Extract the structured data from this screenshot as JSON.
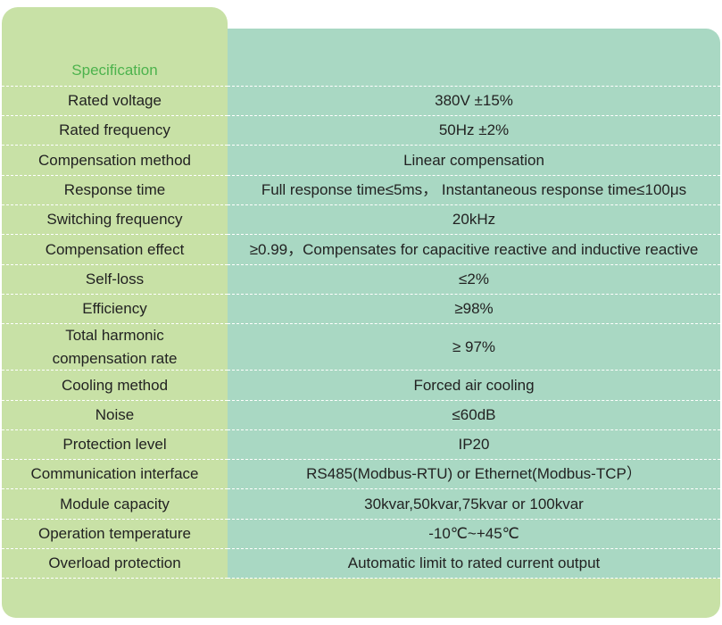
{
  "header": {
    "title": "Specification"
  },
  "table": {
    "rows": [
      [
        "Rated voltage",
        "380V ±15%"
      ],
      [
        "Rated frequency",
        "50Hz ±2%"
      ],
      [
        "Compensation method",
        "Linear compensation"
      ],
      [
        "Response time",
        "Full response time≤5ms， Instantaneous response time≤100μs"
      ],
      [
        "Switching frequency",
        "20kHz"
      ],
      [
        "Compensation effect",
        "≥0.99，Compensates for capacitive reactive and inductive reactive"
      ],
      [
        "Self-loss",
        "≤2%"
      ],
      [
        "Efficiency",
        "≥98%"
      ],
      [
        "Total harmonic\ncompensation rate",
        "≥ 97%"
      ],
      [
        "Cooling method",
        "Forced air cooling"
      ],
      [
        "Noise",
        "≤60dB"
      ],
      [
        "Protection level",
        "IP20"
      ],
      [
        "Communication interface",
        "RS485(Modbus-RTU) or Ethernet(Modbus-TCP）"
      ],
      [
        "Module capacity",
        "30kvar,50kvar,75kvar or 100kvar"
      ],
      [
        "Operation temperature",
        "-10℃~+45℃"
      ],
      [
        "Overload protection",
        "Automatic limit to rated current output"
      ]
    ]
  }
}
